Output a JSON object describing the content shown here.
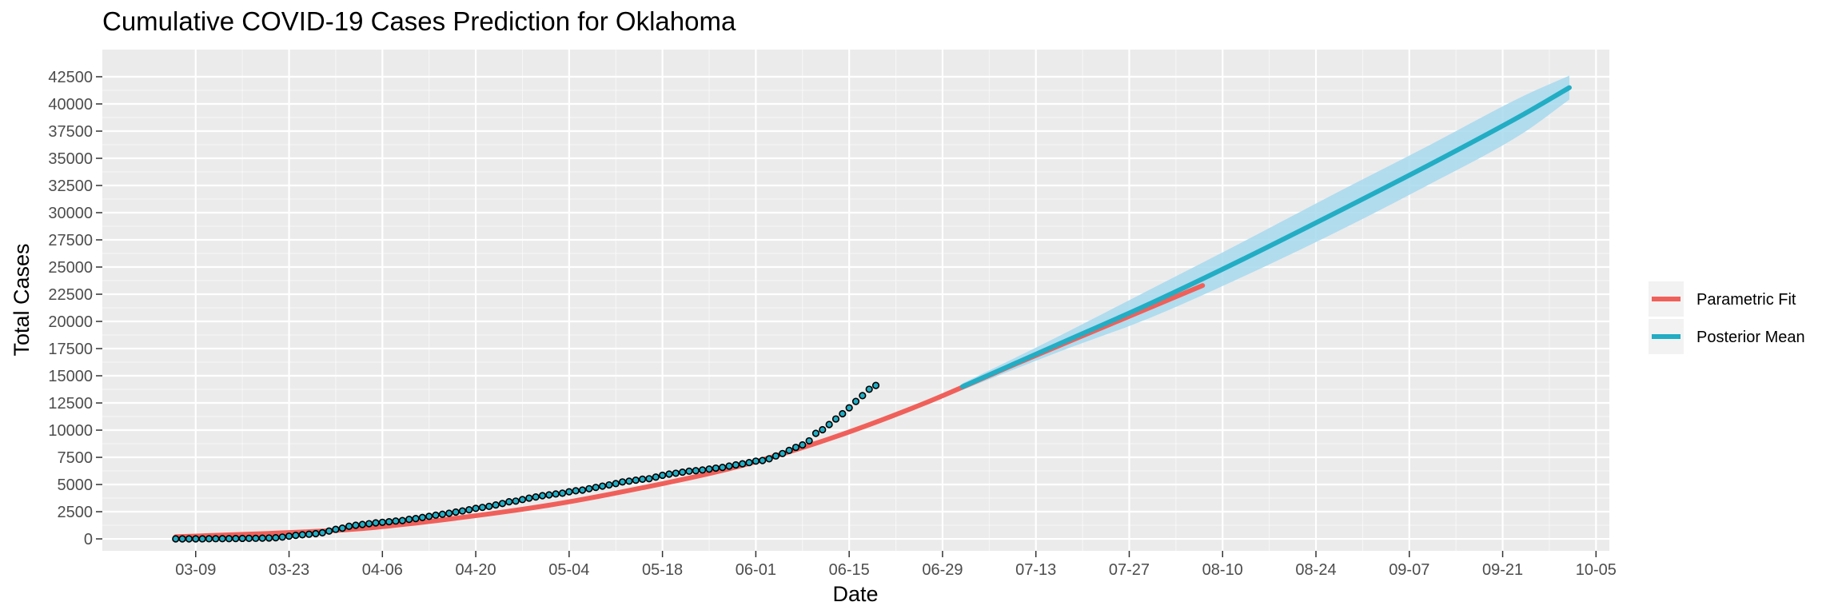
{
  "chart_data": {
    "type": "line",
    "title": "Cumulative COVID-19 Cases Prediction for Oklahoma",
    "xlabel": "Date",
    "ylabel": "Total Cases",
    "x_axis_type": "date",
    "xlim": [
      "2020-02-24",
      "2020-10-07"
    ],
    "ylim": [
      -1100,
      45000
    ],
    "y_ticks": [
      0,
      2500,
      5000,
      7500,
      10000,
      12500,
      15000,
      17500,
      20000,
      22500,
      25000,
      27500,
      30000,
      32500,
      35000,
      37500,
      40000,
      42500
    ],
    "y_tick_labels": [
      "0",
      "2500",
      "5000",
      "7500",
      "10000",
      "12500",
      "15000",
      "17500",
      "20000",
      "22500",
      "25000",
      "27500",
      "30000",
      "32500",
      "35000",
      "37500",
      "40000",
      "42500"
    ],
    "x_ticks": [
      "2020-03-09",
      "2020-03-23",
      "2020-04-06",
      "2020-04-20",
      "2020-05-04",
      "2020-05-18",
      "2020-06-01",
      "2020-06-15",
      "2020-06-29",
      "2020-07-13",
      "2020-07-27",
      "2020-08-10",
      "2020-08-24",
      "2020-09-07",
      "2020-09-21",
      "2020-10-05"
    ],
    "x_tick_labels": [
      "03-09",
      "03-23",
      "04-06",
      "04-20",
      "05-04",
      "05-18",
      "06-01",
      "06-15",
      "06-29",
      "07-13",
      "07-27",
      "08-10",
      "08-24",
      "09-07",
      "09-21",
      "10-05"
    ],
    "grid": true,
    "legend_position": "right",
    "colors": {
      "panel_bg": "#ebebeb",
      "grid": "#ffffff",
      "parametric_fit": "#f0605a",
      "posterior_mean": "#22adc4",
      "credible_band": "#a6d9ee",
      "observed_point_fill": "#22adc4",
      "observed_point_stroke": "#000000"
    },
    "series": [
      {
        "name": "Parametric Fit",
        "kind": "line",
        "x": [
          "2020-03-06",
          "2020-03-20",
          "2020-04-03",
          "2020-04-17",
          "2020-05-01",
          "2020-05-15",
          "2020-05-29",
          "2020-06-12",
          "2020-06-26",
          "2020-07-10",
          "2020-07-24",
          "2020-08-07"
        ],
        "y": [
          200,
          500,
          950,
          1900,
          3100,
          4700,
          6600,
          9200,
          12400,
          16100,
          19700,
          23300
        ]
      },
      {
        "name": "Posterior Mean",
        "kind": "line",
        "x": [
          "2020-07-02",
          "2020-07-16",
          "2020-07-30",
          "2020-08-13",
          "2020-08-27",
          "2020-09-10",
          "2020-09-24",
          "2020-10-01"
        ],
        "y": [
          14000,
          17800,
          21600,
          25700,
          30000,
          34400,
          39000,
          41500
        ],
        "band_lower": [
          13700,
          17100,
          20300,
          24100,
          28200,
          32600,
          37300,
          40400
        ],
        "band_upper": [
          14300,
          18500,
          22900,
          27300,
          31800,
          36200,
          40700,
          42600
        ]
      },
      {
        "kind": "points",
        "x_start": "2020-03-06",
        "y": [
          1,
          2,
          3,
          4,
          7,
          10,
          15,
          19,
          24,
          29,
          44,
          49,
          53,
          67,
          81,
          106,
          164,
          248,
          322,
          377,
          429,
          481,
          565,
          719,
          879,
          988,
          1159,
          1252,
          1327,
          1396,
          1472,
          1524,
          1579,
          1643,
          1684,
          1794,
          1868,
          1970,
          2069,
          2184,
          2263,
          2357,
          2465,
          2570,
          2680,
          2807,
          2894,
          2990,
          3121,
          3253,
          3410,
          3473,
          3618,
          3748,
          3851,
          3972,
          4044,
          4127,
          4201,
          4330,
          4424,
          4489,
          4613,
          4732,
          4852,
          4962,
          5086,
          5237,
          5310,
          5398,
          5489,
          5532,
          5680,
          5849,
          5960,
          6037,
          6137,
          6229,
          6270,
          6338,
          6418,
          6506,
          6572,
          6692,
          6805,
          6907,
          7014,
          7150,
          7210,
          7363,
          7626,
          7848,
          8139,
          8417,
          8645,
          9015,
          9706,
          10037,
          10515,
          11027,
          11510,
          12049,
          12642,
          13172,
          13757,
          14112
        ]
      }
    ]
  }
}
